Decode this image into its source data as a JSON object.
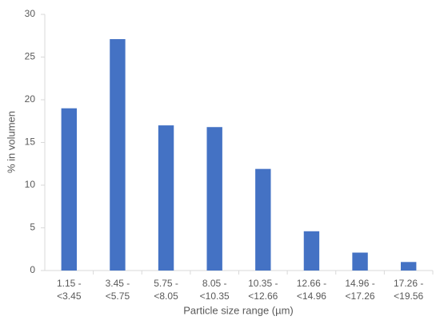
{
  "chart_data": {
    "type": "bar",
    "x_label": "Particle size range (µm)",
    "y_label": "% in volumen",
    "categories": [
      "1.15 -\n<3.45",
      "3.45 -\n<5.75",
      "5.75 -\n<8.05",
      "8.05 -\n<10.35",
      "10.35 -\n<12.66",
      "12.66 -\n<14.96",
      "14.96 -\n<17.26",
      "17.26 -\n<19.56"
    ],
    "values": [
      19,
      27.1,
      17,
      16.8,
      11.9,
      4.6,
      2.1,
      1.0
    ],
    "color": "#4472c4",
    "ylim": [
      0,
      30
    ],
    "yticks": [
      0,
      5,
      10,
      15,
      20,
      25,
      30
    ],
    "grid": false
  }
}
